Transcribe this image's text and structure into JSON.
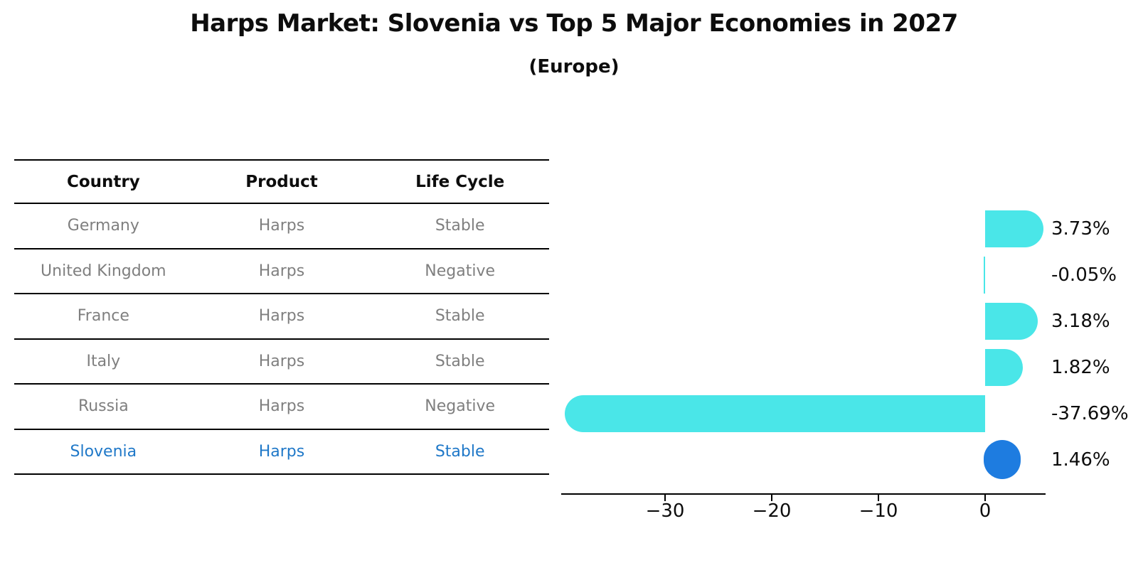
{
  "title": "Harps Market: Slovenia vs Top 5 Major Economies in 2027",
  "subtitle": "(Europe)",
  "table": {
    "headers": [
      "Country",
      "Product",
      "Life Cycle"
    ],
    "rows": [
      {
        "country": "Germany",
        "product": "Harps",
        "life_cycle": "Stable",
        "highlight": false
      },
      {
        "country": "United Kingdom",
        "product": "Harps",
        "life_cycle": "Negative",
        "highlight": false
      },
      {
        "country": "France",
        "product": "Harps",
        "life_cycle": "Stable",
        "highlight": false
      },
      {
        "country": "Italy",
        "product": "Harps",
        "life_cycle": "Stable",
        "highlight": false
      },
      {
        "country": "Russia",
        "product": "Harps",
        "life_cycle": "Negative",
        "highlight": false
      },
      {
        "country": "Slovenia",
        "product": "Harps",
        "life_cycle": "Stable",
        "highlight": true
      }
    ]
  },
  "chart_data": {
    "type": "bar",
    "orientation": "horizontal",
    "title": "Harps Market: Slovenia vs Top 5 Major Economies in 2027 (Europe)",
    "categories": [
      "Germany",
      "United Kingdom",
      "France",
      "Italy",
      "Russia",
      "Slovenia"
    ],
    "values": [
      3.73,
      -0.05,
      3.18,
      1.82,
      -37.69,
      1.46
    ],
    "labels": [
      "3.73%",
      "-0.05%",
      "3.18%",
      "1.82%",
      "-37.69%",
      "1.46%"
    ],
    "unit": "%",
    "x_ticks": [
      "−30",
      "−20",
      "−10",
      "0"
    ],
    "x_tick_values": [
      -30,
      -20,
      -10,
      0
    ],
    "xlim": [
      -39.7,
      5.7
    ],
    "grid": false,
    "legend": false,
    "highlight_index": 5,
    "bar_colors": {
      "default": "#4ae6e8",
      "highlight": "#1e7ce0"
    }
  },
  "colors": {
    "accent_cyan": "#4ae6e8",
    "accent_blue": "#1e7ce0",
    "table_text": "#7f7f7f",
    "highlight_text": "#1f78c8",
    "axis": "#000000"
  }
}
